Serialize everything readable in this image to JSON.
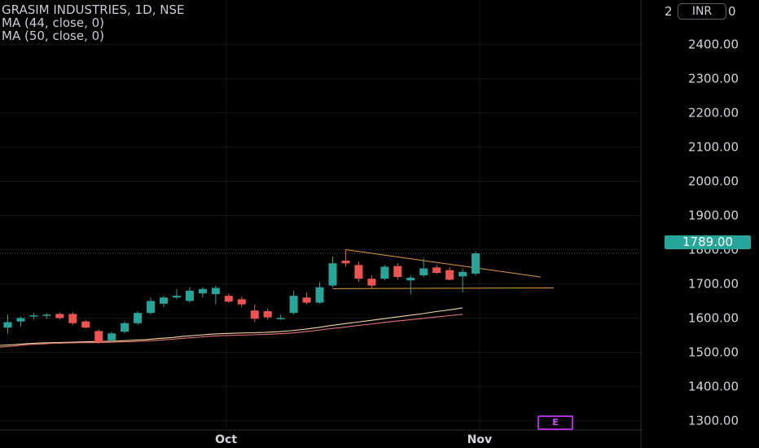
{
  "legend": {
    "title": "GRASIM INDUSTRIES, 1D, NSE",
    "ma1": "MA (44, close, 0)",
    "ma2": "MA (50, close, 0)"
  },
  "currency_label": "INR",
  "axis_top_fragment_left": "2",
  "axis_top_fragment_right": "0",
  "last_price_label": "1789.00",
  "earnings_marker": "E",
  "colors": {
    "up": "#26a69a",
    "down": "#ef5350",
    "ma44": "#f2d79a",
    "ma50": "#e57373",
    "trendline": "#e39b3c",
    "background": "#000000"
  },
  "chart_data": {
    "type": "candlestick",
    "title": "GRASIM INDUSTRIES, 1D, NSE",
    "ylim": [
      1220,
      2530
    ],
    "y_ticks": [
      1300,
      1400,
      1500,
      1600,
      1700,
      1800,
      1900,
      2000,
      2100,
      2200,
      2300,
      2400
    ],
    "y_tick_labels": [
      "1300.00",
      "1400.00",
      "1500.00",
      "1600.00",
      "1700.00",
      "1800.00",
      "1900.00",
      "2000.00",
      "2100.00",
      "2200.00",
      "2300.00",
      "2400.00"
    ],
    "x_labels": [
      {
        "label": "Oct",
        "index": 16.8
      },
      {
        "label": "Nov",
        "index": 36.3
      }
    ],
    "candles": [
      {
        "o": 1572,
        "h": 1610,
        "l": 1555,
        "c": 1588
      },
      {
        "o": 1590,
        "h": 1605,
        "l": 1575,
        "c": 1600
      },
      {
        "o": 1605,
        "h": 1615,
        "l": 1595,
        "c": 1608
      },
      {
        "o": 1607,
        "h": 1615,
        "l": 1598,
        "c": 1610
      },
      {
        "o": 1612,
        "h": 1617,
        "l": 1595,
        "c": 1600
      },
      {
        "o": 1612,
        "h": 1618,
        "l": 1580,
        "c": 1585
      },
      {
        "o": 1590,
        "h": 1595,
        "l": 1570,
        "c": 1572
      },
      {
        "o": 1562,
        "h": 1567,
        "l": 1525,
        "c": 1530
      },
      {
        "o": 1535,
        "h": 1560,
        "l": 1530,
        "c": 1555
      },
      {
        "o": 1560,
        "h": 1590,
        "l": 1555,
        "c": 1585
      },
      {
        "o": 1585,
        "h": 1620,
        "l": 1580,
        "c": 1615
      },
      {
        "o": 1615,
        "h": 1660,
        "l": 1610,
        "c": 1650
      },
      {
        "o": 1642,
        "h": 1665,
        "l": 1632,
        "c": 1660
      },
      {
        "o": 1660,
        "h": 1685,
        "l": 1655,
        "c": 1665
      },
      {
        "o": 1650,
        "h": 1690,
        "l": 1645,
        "c": 1680
      },
      {
        "o": 1672,
        "h": 1690,
        "l": 1660,
        "c": 1685
      },
      {
        "o": 1670,
        "h": 1695,
        "l": 1640,
        "c": 1688
      },
      {
        "o": 1665,
        "h": 1672,
        "l": 1645,
        "c": 1648
      },
      {
        "o": 1655,
        "h": 1662,
        "l": 1632,
        "c": 1640
      },
      {
        "o": 1622,
        "h": 1640,
        "l": 1588,
        "c": 1598
      },
      {
        "o": 1620,
        "h": 1628,
        "l": 1595,
        "c": 1602
      },
      {
        "o": 1598,
        "h": 1610,
        "l": 1595,
        "c": 1600
      },
      {
        "o": 1615,
        "h": 1680,
        "l": 1610,
        "c": 1665
      },
      {
        "o": 1660,
        "h": 1675,
        "l": 1640,
        "c": 1645
      },
      {
        "o": 1645,
        "h": 1705,
        "l": 1642,
        "c": 1690
      },
      {
        "o": 1695,
        "h": 1780,
        "l": 1690,
        "c": 1760
      },
      {
        "o": 1768,
        "h": 1800,
        "l": 1750,
        "c": 1760
      },
      {
        "o": 1755,
        "h": 1765,
        "l": 1705,
        "c": 1715
      },
      {
        "o": 1715,
        "h": 1725,
        "l": 1688,
        "c": 1695
      },
      {
        "o": 1715,
        "h": 1755,
        "l": 1710,
        "c": 1750
      },
      {
        "o": 1752,
        "h": 1760,
        "l": 1712,
        "c": 1720
      },
      {
        "o": 1710,
        "h": 1725,
        "l": 1670,
        "c": 1718
      },
      {
        "o": 1725,
        "h": 1775,
        "l": 1720,
        "c": 1745
      },
      {
        "o": 1748,
        "h": 1755,
        "l": 1728,
        "c": 1732
      },
      {
        "o": 1740,
        "h": 1748,
        "l": 1710,
        "c": 1712
      },
      {
        "o": 1722,
        "h": 1745,
        "l": 1675,
        "c": 1735
      },
      {
        "o": 1730,
        "h": 1795,
        "l": 1725,
        "c": 1789
      }
    ],
    "series": [
      {
        "name": "MA (44, close, 0)",
        "values": [
          1520,
          1522,
          1525,
          1527,
          1528,
          1529,
          1530,
          1531,
          1532,
          1533,
          1535,
          1537,
          1540,
          1543,
          1547,
          1550,
          1553,
          1555,
          1556,
          1557,
          1558,
          1560,
          1563,
          1567,
          1572,
          1578,
          1583,
          1588,
          1593,
          1598,
          1603,
          1608,
          1613,
          1619,
          1624,
          1630
        ]
      },
      {
        "name": "MA (50, close, 0)",
        "values": [
          1515,
          1518,
          1522,
          1524,
          1526,
          1527,
          1528,
          1528,
          1529,
          1530,
          1531,
          1533,
          1535,
          1538,
          1541,
          1544,
          1547,
          1549,
          1550,
          1551,
          1552,
          1554,
          1556,
          1560,
          1564,
          1569,
          1573,
          1578,
          1582,
          1587,
          1591,
          1595,
          1599,
          1603,
          1607,
          1611
        ]
      }
    ],
    "trendlines": [
      {
        "x1": 26.0,
        "y1": 1800,
        "x2": 41.0,
        "y2": 1720
      },
      {
        "x1": 25.0,
        "y1": 1686,
        "x2": 42.0,
        "y2": 1688
      }
    ],
    "last_price": 1789.0
  }
}
